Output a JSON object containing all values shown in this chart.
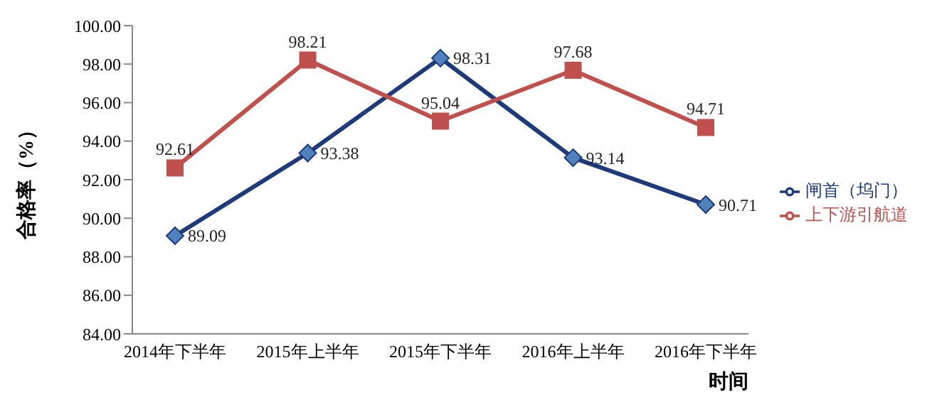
{
  "chart_data": {
    "type": "line",
    "ylabel": "合格率（%）",
    "xlabel": "时间",
    "categories": [
      "2014年下半年",
      "2015年上半年",
      "2015年下半年",
      "2016年上半年",
      "2016年下半年"
    ],
    "series": [
      {
        "name": "闸首（坞门）",
        "color": "#1f3a7a",
        "marker": "diamond",
        "values": [
          89.09,
          93.38,
          98.31,
          93.14,
          90.71
        ]
      },
      {
        "name": "上下游引航道",
        "color": "#c0504d",
        "marker": "square",
        "values": [
          92.61,
          98.21,
          95.04,
          97.68,
          94.71
        ]
      }
    ],
    "ylim": [
      84,
      100
    ],
    "yticks": [
      {
        "value": 84,
        "label": "84.00"
      },
      {
        "value": 86,
        "label": "86.00"
      },
      {
        "value": 88,
        "label": "88.00"
      },
      {
        "value": 90,
        "label": "90.00"
      },
      {
        "value": 92,
        "label": "92.00"
      },
      {
        "value": 94,
        "label": "94.00"
      },
      {
        "value": 96,
        "label": "96.00"
      },
      {
        "value": 98,
        "label": "98.00"
      },
      {
        "value": 100,
        "label": "100.00"
      }
    ],
    "grid": false,
    "legend": "right",
    "data_labels": true,
    "line_style": "solid"
  }
}
